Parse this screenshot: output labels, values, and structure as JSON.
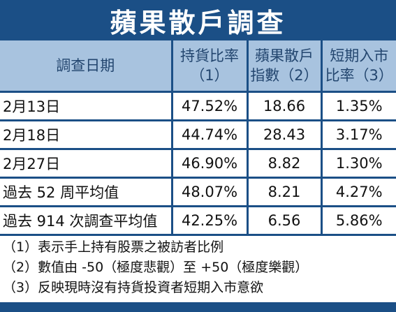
{
  "title": "蘋果散戶調查",
  "header": {
    "col1": "調查日期",
    "col2_line1": "持貨比率",
    "col2_line2": "（1）",
    "col3_line1": "蘋果散戶",
    "col3_line2": "指數（2）",
    "col4_line1": "短期入市",
    "col4_line2": "比率（3）"
  },
  "rows": [
    {
      "date": "2月13日",
      "holding": "47.52%",
      "index": "18.66",
      "entry": "1.35%"
    },
    {
      "date": "2月18日",
      "holding": "44.74%",
      "index": "28.43",
      "entry": "3.17%"
    },
    {
      "date": "2月27日",
      "holding": "46.90%",
      "index": "8.82",
      "entry": "1.30%"
    },
    {
      "date": "過去 52 周平均值",
      "holding": "48.07%",
      "index": "8.21",
      "entry": "4.27%"
    },
    {
      "date": "過去 914 次調查平均值",
      "holding": "42.25%",
      "index": "6.56",
      "entry": "5.86%"
    }
  ],
  "notes": [
    "（1）表示手上持有股票之被訪者比例",
    "（2）數值由 -50（極度悲觀）至 +50（極度樂觀）",
    "（3）反映現時沒有持貨投資者短期入市意欲"
  ],
  "colors": {
    "title_bg": "#1b4f86",
    "header_bg": "#a8c3df",
    "grid": "#1b4f86"
  }
}
